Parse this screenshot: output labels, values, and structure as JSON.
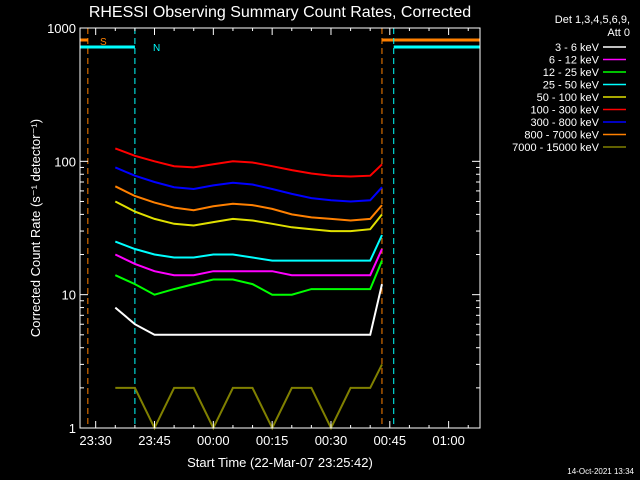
{
  "colors": {
    "background": "#000000",
    "foreground": "#ffffff",
    "cyan": "#00ffff",
    "orange": "#ff8000"
  },
  "annotations": {
    "saa_label": "S",
    "night_label": "N",
    "detectors": "Det 1,3,4,5,6,9,",
    "attenuator": "Att 0",
    "generated": "14-Oct-2021 13:34"
  },
  "chart_data": {
    "type": "line",
    "title": "RHESSI Observing Summary Count Rates, Corrected",
    "xlabel": "Start Time (22-Mar-07 23:25:42)",
    "ylabel": "Corrected Count Rate (s⁻¹ detector⁻¹)",
    "yscale": "log",
    "ylim": [
      1,
      1000
    ],
    "xlim_minutes": [
      -4,
      98
    ],
    "x_ticks": [
      {
        "label": "23:30",
        "minute": 0
      },
      {
        "label": "23:45",
        "minute": 15
      },
      {
        "label": "00:00",
        "minute": 30
      },
      {
        "label": "00:15",
        "minute": 45
      },
      {
        "label": "00:30",
        "minute": 60
      },
      {
        "label": "00:45",
        "minute": 75
      },
      {
        "label": "01:00",
        "minute": 90
      }
    ],
    "y_ticks": [
      {
        "label": "1",
        "value": 1
      },
      {
        "label": "10",
        "value": 10
      },
      {
        "label": "100",
        "value": 100
      },
      {
        "label": "1000",
        "value": 1000
      }
    ],
    "legend_position": "right",
    "series": [
      {
        "name": "3 - 6 keV",
        "color": "#ffffff",
        "x": [
          5,
          10,
          15,
          20,
          25,
          30,
          35,
          40,
          45,
          50,
          55,
          60,
          65,
          70,
          73
        ],
        "y": [
          8,
          6,
          5,
          5,
          5,
          5,
          5,
          5,
          5,
          5,
          5,
          5,
          5,
          5,
          12
        ]
      },
      {
        "name": "6 - 12 keV",
        "color": "#ff00ff",
        "x": [
          5,
          10,
          15,
          20,
          25,
          30,
          35,
          40,
          45,
          50,
          55,
          60,
          65,
          70,
          73
        ],
        "y": [
          20,
          17,
          15,
          14,
          14,
          15,
          15,
          15,
          15,
          14,
          14,
          14,
          14,
          14,
          22
        ]
      },
      {
        "name": "12 - 25 keV",
        "color": "#00ff00",
        "x": [
          5,
          10,
          15,
          20,
          25,
          30,
          35,
          40,
          45,
          50,
          55,
          60,
          65,
          70,
          73
        ],
        "y": [
          14,
          12,
          10,
          11,
          12,
          13,
          13,
          12,
          10,
          10,
          11,
          11,
          11,
          11,
          18
        ]
      },
      {
        "name": "25 - 50 keV",
        "color": "#00ffff",
        "x": [
          5,
          10,
          15,
          20,
          25,
          30,
          35,
          40,
          45,
          50,
          55,
          60,
          65,
          70,
          73
        ],
        "y": [
          25,
          22,
          20,
          19,
          19,
          20,
          20,
          19,
          18,
          18,
          18,
          18,
          18,
          18,
          28
        ]
      },
      {
        "name": "50 - 100 keV",
        "color": "#e0e000",
        "x": [
          5,
          10,
          15,
          20,
          25,
          30,
          35,
          40,
          45,
          50,
          55,
          60,
          65,
          70,
          73
        ],
        "y": [
          50,
          42,
          37,
          34,
          33,
          35,
          37,
          36,
          34,
          32,
          31,
          30,
          30,
          31,
          40
        ]
      },
      {
        "name": "100 - 300 keV",
        "color": "#ff0000",
        "x": [
          5,
          10,
          15,
          20,
          25,
          30,
          35,
          40,
          45,
          50,
          55,
          60,
          65,
          70,
          73
        ],
        "y": [
          125,
          110,
          100,
          92,
          90,
          95,
          100,
          98,
          92,
          86,
          81,
          78,
          77,
          78,
          95
        ]
      },
      {
        "name": "300 - 800 keV",
        "color": "#0000ff",
        "x": [
          5,
          10,
          15,
          20,
          25,
          30,
          35,
          40,
          45,
          50,
          55,
          60,
          65,
          70,
          73
        ],
        "y": [
          90,
          78,
          70,
          64,
          62,
          66,
          69,
          67,
          62,
          57,
          53,
          51,
          50,
          51,
          64
        ]
      },
      {
        "name": "800 - 7000 keV",
        "color": "#ff8000",
        "x": [
          5,
          10,
          15,
          20,
          25,
          30,
          35,
          40,
          45,
          50,
          55,
          60,
          65,
          70,
          73
        ],
        "y": [
          65,
          55,
          49,
          45,
          43,
          46,
          48,
          47,
          44,
          40,
          38,
          37,
          36,
          37,
          47
        ]
      },
      {
        "name": "7000 - 15000 keV",
        "color": "#808000",
        "x": [
          5,
          10,
          15,
          20,
          25,
          30,
          35,
          40,
          45,
          50,
          55,
          60,
          65,
          70,
          73
        ],
        "y": [
          2,
          2,
          1,
          2,
          2,
          1,
          2,
          2,
          1,
          2,
          2,
          1,
          2,
          2,
          3
        ]
      }
    ],
    "time_markers": [
      {
        "type": "SAA",
        "color": "#ff8000",
        "start_minute": -4,
        "end_minute": -2
      },
      {
        "type": "NIGHT",
        "color": "#00ffff",
        "start_minute": -4,
        "end_minute": 10
      },
      {
        "type": "SAA",
        "color": "#ff8000",
        "start_minute": 73,
        "end_minute": 98
      },
      {
        "type": "NIGHT",
        "color": "#00ffff",
        "start_minute": 76,
        "end_minute": 98
      }
    ]
  }
}
